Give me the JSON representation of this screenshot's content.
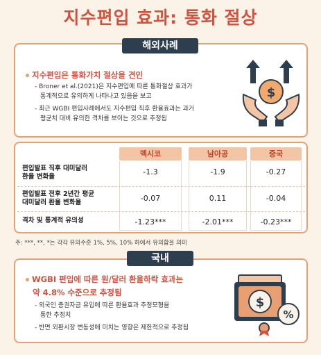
{
  "title": "지수편입 효과: 통화 절상",
  "overseas": {
    "tab": "해외사례",
    "headline": "지수편입은 통화가치 절상을 견인",
    "bullets": [
      "Broner et al.(2021)은 지수편입에 따른 통화절상 효과가",
      "통계적으로 유의하게 나타나고 있음을 보고",
      "최근 WGBI 편입사례에서도 지수편입 직후 환율효과는 과거",
      "평균치 대비 유의한 격차를 보이는 것으로 추정됨"
    ]
  },
  "table": {
    "columns": [
      "멕시코",
      "남아공",
      "중국"
    ],
    "rows": [
      {
        "label_1": "편입발표 직후 대미달러",
        "label_2": "환율 변화율",
        "values": [
          "-1.3",
          "-1.9",
          "-0.27"
        ]
      },
      {
        "label_1": "편입발표 전후 2년간 평균",
        "label_2": "대미달러 환율 변화율",
        "values": [
          "-0.07",
          "0.11",
          "-0.04"
        ]
      },
      {
        "label_1": "격차 및 통계적 유의성",
        "label_2": "",
        "values": [
          "-1.23***",
          "-2.01***",
          "-0.23***"
        ]
      }
    ],
    "note": "주: ***, **, *는 각각 유의수준 1%, 5%, 10% 하에서 유의함을 의미"
  },
  "domestic": {
    "tab": "국내",
    "headline_1": "WGBI 편입에 따른 원/달러 환율하락 효과는",
    "headline_2": "약 4.8% 수준으로 추정됨",
    "bullets": [
      "외국인 증권자금 유입에 따른 환율효과 추정모형을",
      "통한 추정치",
      "반면 외환시장 변동성에 미치는 영향은 제한적으로 추정됨"
    ]
  },
  "icons": {
    "hands": "hands-coin-up-arrows-icon",
    "bill": "dollar-bill-percent-icon"
  },
  "colors": {
    "accent": "#d0523f",
    "border": "#e8a073",
    "tab": "#2d3e4e",
    "header_fill": "#f4c5a5"
  }
}
